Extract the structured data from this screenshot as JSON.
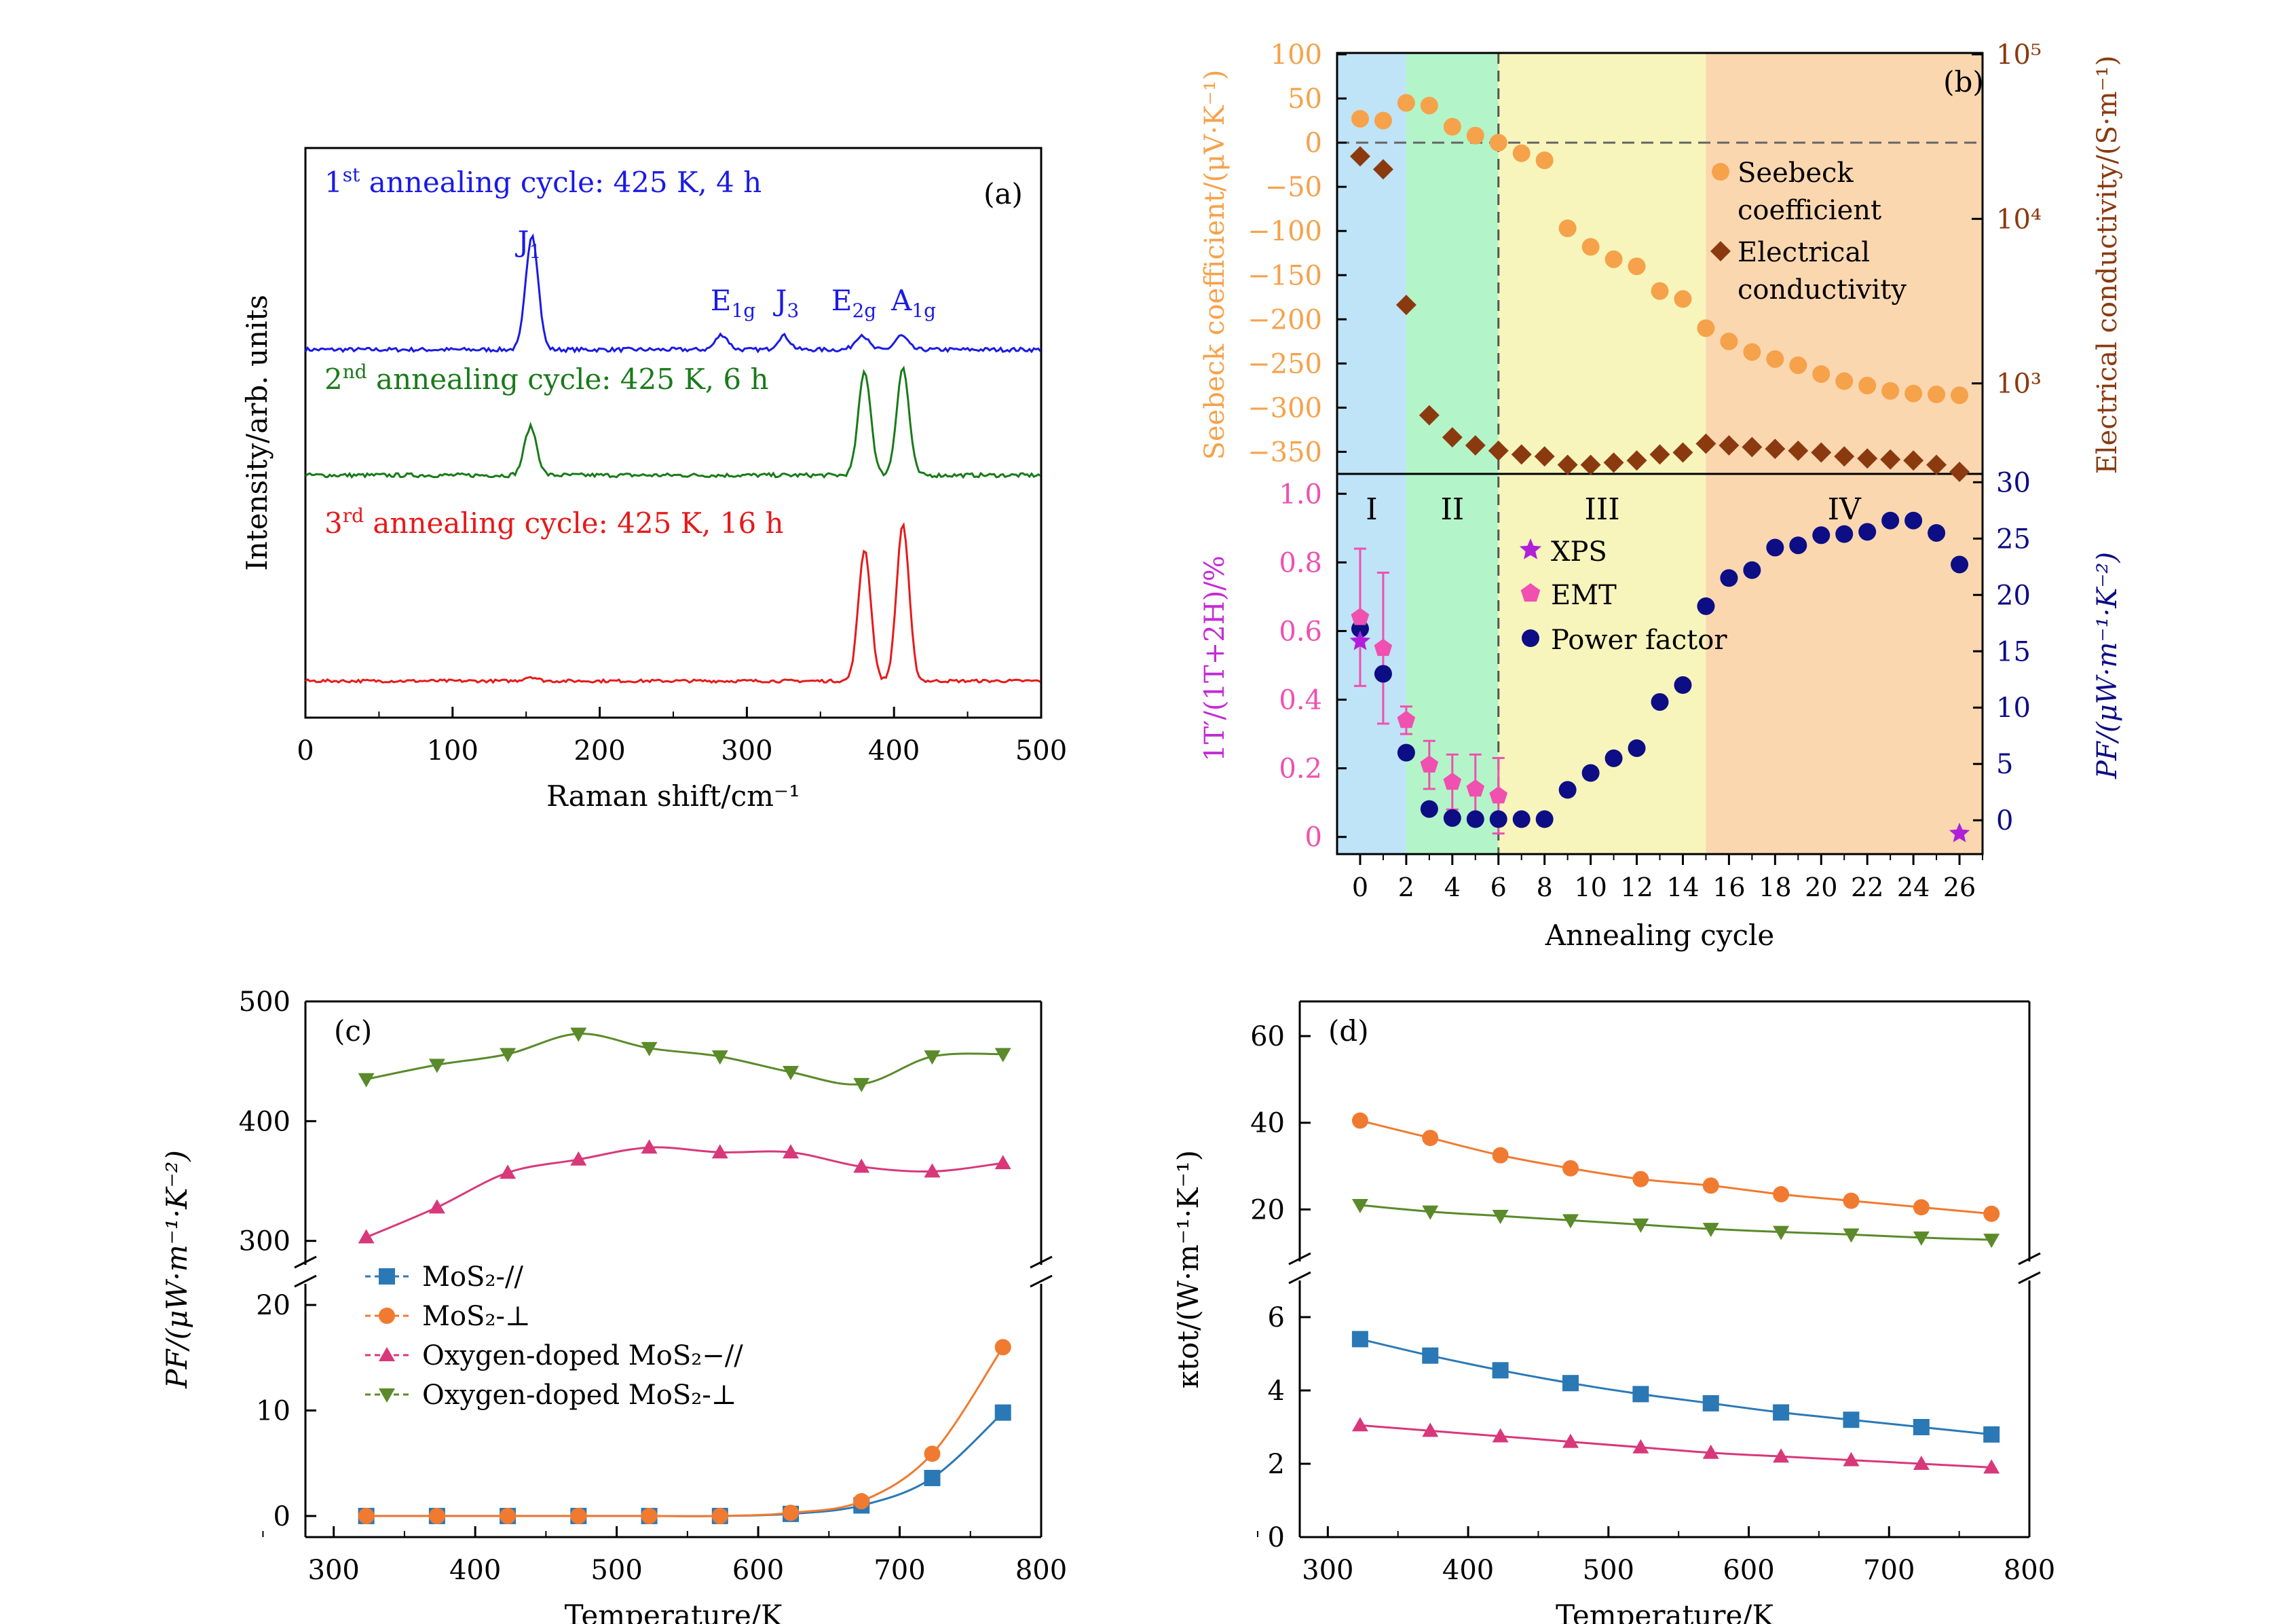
{
  "panel_a": {
    "chart_data": {
      "type": "line",
      "label": "(a)",
      "xlabel": "Raman shift/cm⁻¹",
      "ylabel": "Intensity/arb. units",
      "xlim": [
        0,
        500
      ],
      "x_ticks": [
        0,
        100,
        200,
        300,
        400,
        500
      ],
      "series": [
        {
          "name": "1st annealing cycle: 425 K, 4 h",
          "color": "#1a1ae6",
          "peaks": [
            {
              "x": 154,
              "height": 1.0,
              "label": "J1"
            },
            {
              "x": 283,
              "height": 0.13,
              "label": "E1g"
            },
            {
              "x": 325,
              "height": 0.12,
              "label": "J3"
            },
            {
              "x": 378,
              "height": 0.13,
              "label": "E2g"
            },
            {
              "x": 405,
              "height": 0.12,
              "label": "A1g"
            }
          ]
        },
        {
          "name": "2nd annealing cycle: 425 K, 6 h",
          "color": "#1a7a1a",
          "peaks": [
            {
              "x": 153,
              "height": 0.42
            },
            {
              "x": 380,
              "height": 0.9
            },
            {
              "x": 406,
              "height": 0.93
            }
          ]
        },
        {
          "name": "3rd annealing cycle: 425 K, 16 h",
          "color": "#e61a1a",
          "peaks": [
            {
              "x": 153,
              "height": 0.05
            },
            {
              "x": 380,
              "height": 1.55
            },
            {
              "x": 406,
              "height": 1.85
            }
          ]
        }
      ],
      "line_labels": [
        {
          "pre": "1",
          "sup": "st",
          "post": " annealing cycle: 425 K, 4 h"
        },
        {
          "pre": "2",
          "sup": "nd",
          "post": " annealing cycle: 425 K, 6 h"
        },
        {
          "pre": "3",
          "sup": "rd",
          "post": " annealing cycle: 425 K, 16 h"
        }
      ],
      "peak_labels": [
        {
          "main": "J",
          "sub": "1"
        },
        {
          "main": "E",
          "sub": "1g"
        },
        {
          "main": "J",
          "sub": "3"
        },
        {
          "main": "E",
          "sub": "2g"
        },
        {
          "main": "A",
          "sub": "1g"
        }
      ]
    }
  },
  "panel_b": {
    "chart_data": {
      "type": "scatter",
      "label": "(b)",
      "xlabel": "Annealing cycle",
      "x_ticks": [
        0,
        2,
        4,
        6,
        8,
        10,
        12,
        14,
        16,
        18,
        20,
        22,
        24,
        26
      ],
      "xlim": [
        -1,
        27
      ],
      "regions": [
        {
          "label": "I",
          "from": -1,
          "to": 2,
          "color": "#bfe3f7"
        },
        {
          "label": "II",
          "from": 2,
          "to": 6,
          "color": "#b3f5c9"
        },
        {
          "label": "III",
          "from": 6,
          "to": 15,
          "color": "#f7f5bc"
        },
        {
          "label": "IV",
          "from": 15,
          "to": 27,
          "color": "#fbd7b0"
        }
      ],
      "top": {
        "ylabel_left": "Seebeck coefficient/(μV·K⁻¹)",
        "ylabel_right": "Electrical conductivity/(S·m⁻¹)",
        "ylim_left": [
          -375,
          100
        ],
        "left_ticks": [
          100,
          50,
          0,
          -50,
          -100,
          -150,
          -200,
          -250,
          -300,
          -350
        ],
        "right_ticks": [
          "10⁵",
          "10⁴",
          "10³"
        ],
        "ylim_right_log10": [
          2.45,
          5
        ],
        "legend": [
          "Seebeck coefficient",
          "Electrical conductivity"
        ],
        "seebeck_color": "#f5a24b",
        "sigma_color": "#8b3a10",
        "seebeck": {
          "x": [
            0,
            1,
            2,
            3,
            4,
            5,
            6,
            7,
            8,
            9,
            10,
            11,
            12,
            13,
            14,
            15,
            16,
            17,
            18,
            19,
            20,
            21,
            22,
            23,
            24,
            25,
            26
          ],
          "y": [
            27,
            25,
            45,
            42,
            18,
            8,
            0,
            -12,
            -20,
            -97,
            -118,
            -132,
            -140,
            -168,
            -177,
            -210,
            -225,
            -237,
            -245,
            -252,
            -262,
            -270,
            -275,
            -281,
            -284,
            -285,
            -286
          ]
        },
        "conductivity": {
          "x": [
            0,
            1,
            2,
            3,
            4,
            5,
            6,
            7,
            8,
            9,
            10,
            11,
            12,
            13,
            14,
            15,
            16,
            17,
            18,
            19,
            20,
            21,
            22,
            23,
            24,
            25,
            26
          ],
          "y": [
            24000,
            20000,
            3000,
            640,
            470,
            420,
            390,
            370,
            360,
            320,
            320,
            330,
            340,
            370,
            380,
            430,
            420,
            410,
            400,
            390,
            380,
            360,
            350,
            345,
            340,
            320,
            290
          ]
        }
      },
      "bottom": {
        "ylabel_left": "1T′/(1T+2H)/%",
        "ylabel_right": "PF/(μW·m⁻¹·K⁻²)",
        "ylim_left": [
          -0.05,
          1.05
        ],
        "left_ticks": [
          0,
          0.2,
          0.4,
          0.6,
          0.8,
          1.0
        ],
        "ylim_right": [
          -3,
          30.5
        ],
        "right_ticks": [
          0,
          5,
          10,
          15,
          20,
          25,
          30
        ],
        "legend": [
          "XPS",
          "EMT",
          "Power factor"
        ],
        "xps_color": "#b01fd9",
        "emt_color": "#f050b0",
        "pf_color": "#0d0d85",
        "xps": {
          "x": [
            0,
            26
          ],
          "y": [
            0.57,
            0.01
          ]
        },
        "emt": {
          "x": [
            0,
            1,
            2,
            3,
            4,
            5,
            6
          ],
          "y": [
            0.64,
            0.55,
            0.34,
            0.21,
            0.16,
            0.14,
            0.12
          ],
          "err": [
            0.2,
            0.22,
            0.04,
            0.07,
            0.08,
            0.1,
            0.11
          ]
        },
        "power_factor": {
          "x": [
            0,
            1,
            2,
            3,
            4,
            5,
            6,
            7,
            8,
            9,
            10,
            11,
            12,
            13,
            14,
            15,
            16,
            17,
            18,
            19,
            20,
            21,
            22,
            23,
            24,
            25,
            26
          ],
          "y": [
            17.0,
            13.0,
            6.0,
            1.0,
            0.2,
            0.1,
            0.1,
            0.1,
            0.1,
            2.7,
            4.2,
            5.5,
            6.4,
            10.5,
            12.0,
            19.0,
            21.5,
            22.2,
            24.2,
            24.4,
            25.3,
            25.4,
            25.6,
            26.6,
            26.6,
            25.5,
            22.7
          ]
        }
      }
    }
  },
  "panel_c": {
    "chart_data": {
      "type": "line",
      "label": "(c)",
      "xlabel": "Temperature/K",
      "ylabel": "PF/(μW·m⁻¹·K⁻²)",
      "xlim": [
        280,
        800
      ],
      "x_ticks": [
        300,
        400,
        500,
        600,
        700,
        800
      ],
      "broken_axis": {
        "upper_ylim": [
          280,
          500
        ],
        "upper_ticks": [
          300,
          400,
          500
        ],
        "lower_ylim": [
          -2,
          22
        ],
        "lower_ticks": [
          0,
          10,
          20
        ]
      },
      "x": [
        323,
        373,
        423,
        473,
        523,
        573,
        623,
        673,
        723,
        773
      ],
      "series": [
        {
          "name": "MoS₂-//",
          "color": "#2a78b6",
          "marker": "square",
          "values": [
            0,
            0,
            0,
            0,
            0,
            0,
            0.2,
            1.0,
            3.6,
            9.8
          ]
        },
        {
          "name": "MoS₂-⊥",
          "color": "#f07a30",
          "marker": "circle",
          "values": [
            0,
            0,
            0,
            0,
            0,
            0,
            0.3,
            1.4,
            5.9,
            16.0
          ]
        },
        {
          "name": "Oxygen-doped MoS₂−//",
          "color": "#d8387a",
          "marker": "triangle-up",
          "values": [
            303,
            328,
            357,
            368,
            378,
            374,
            374,
            362,
            358,
            365
          ]
        },
        {
          "name": "Oxygen-doped MoS₂-⊥",
          "color": "#5a8a2a",
          "marker": "triangle-down",
          "values": [
            435,
            447,
            456,
            473,
            461,
            454,
            441,
            431,
            454,
            456
          ]
        }
      ]
    }
  },
  "panel_d": {
    "chart_data": {
      "type": "line",
      "label": "(d)",
      "xlabel": "Temperature/K",
      "ylabel": "κtot/(W·m⁻¹·K⁻¹)",
      "xlim": [
        280,
        800
      ],
      "x_ticks": [
        300,
        400,
        500,
        600,
        700,
        800
      ],
      "broken_axis": {
        "upper_ylim": [
          8,
          68
        ],
        "upper_ticks": [
          20,
          40,
          60
        ],
        "lower_ylim": [
          0,
          7
        ],
        "lower_ticks": [
          0,
          2,
          4,
          6
        ]
      },
      "x": [
        323,
        373,
        423,
        473,
        523,
        573,
        623,
        673,
        723,
        773
      ],
      "series": [
        {
          "name": "MoS₂-//",
          "color": "#2a78b6",
          "marker": "square",
          "values": [
            5.4,
            4.95,
            4.55,
            4.2,
            3.9,
            3.65,
            3.4,
            3.2,
            3.0,
            2.8
          ]
        },
        {
          "name": "MoS₂-⊥",
          "color": "#f07a30",
          "marker": "circle",
          "values": [
            40.5,
            36.5,
            32.5,
            29.5,
            27.0,
            25.5,
            23.5,
            22.0,
            20.5,
            19.0
          ]
        },
        {
          "name": "Oxygen-doped MoS₂−//",
          "color": "#d8387a",
          "marker": "triangle-up",
          "values": [
            3.05,
            2.9,
            2.75,
            2.6,
            2.45,
            2.3,
            2.2,
            2.1,
            2.0,
            1.9
          ]
        },
        {
          "name": "Oxygen-doped MoS₂-⊥",
          "color": "#5a8a2a",
          "marker": "triangle-down",
          "values": [
            21.0,
            19.5,
            18.5,
            17.5,
            16.5,
            15.5,
            14.8,
            14.2,
            13.5,
            13.0
          ]
        }
      ]
    }
  }
}
